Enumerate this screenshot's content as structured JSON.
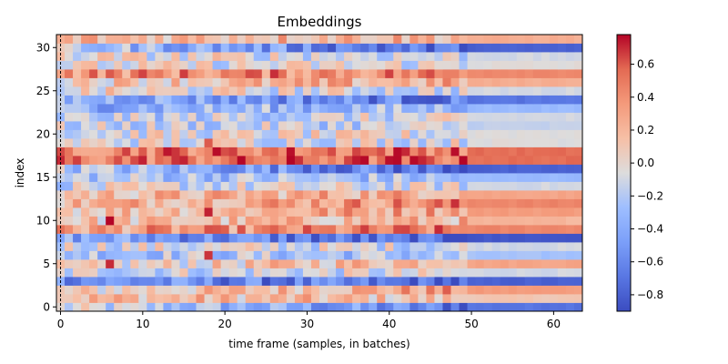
{
  "chart_data": {
    "type": "heatmap",
    "title": "Embeddings",
    "xlabel": "time frame (samples, in batches)",
    "ylabel": "index",
    "x_range": [
      -0.5,
      63.5
    ],
    "y_range": [
      -0.5,
      31.5
    ],
    "x_ticks": [
      0,
      10,
      20,
      30,
      40,
      50,
      60
    ],
    "y_ticks": [
      0,
      5,
      10,
      15,
      20,
      25,
      30
    ],
    "colormap": "coolwarm",
    "value_range": [
      -0.9,
      0.78
    ],
    "colorbar_ticks": [
      -0.8,
      -0.6,
      -0.4,
      -0.2,
      0.0,
      0.2,
      0.4,
      0.6
    ],
    "colorbar_tick_labels": [
      "−0.8",
      "−0.6",
      "−0.4",
      "−0.2",
      "0.0",
      "0.2",
      "0.4",
      "0.6"
    ],
    "vertical_marker_x": 0,
    "rows": 32,
    "cols": 64,
    "row_settled_values": [
      -0.7,
      0.1,
      0.35,
      -0.8,
      -0.1,
      0.3,
      -0.25,
      -0.1,
      -0.85,
      0.45,
      0.2,
      0.35,
      0.45,
      0.3,
      -0.1,
      -0.3,
      -0.8,
      0.55,
      0.55,
      -0.05,
      -0.05,
      -0.15,
      -0.1,
      -0.3,
      -0.7,
      -0.1,
      0.25,
      0.45,
      -0.05,
      -0.1,
      -0.8,
      0.25
    ],
    "row_early_values": [
      -0.1,
      0.2,
      0.0,
      -0.5,
      -0.1,
      -0.1,
      -0.2,
      -0.05,
      -0.4,
      0.3,
      0.1,
      0.15,
      0.2,
      0.15,
      -0.1,
      -0.2,
      -0.2,
      0.5,
      0.5,
      -0.05,
      -0.05,
      -0.15,
      -0.2,
      -0.35,
      -0.3,
      0.0,
      0.1,
      0.4,
      -0.05,
      0.0,
      -0.2,
      0.2
    ],
    "hot_cells": [
      {
        "x": 6,
        "y": 10,
        "value": 0.78
      },
      {
        "x": 18,
        "y": 11,
        "value": 0.72
      },
      {
        "x": 6,
        "y": 5,
        "value": 0.7
      },
      {
        "x": 18,
        "y": 6,
        "value": 0.68
      },
      {
        "x": 18,
        "y": 19,
        "value": 0.6
      },
      {
        "x": 35,
        "y": 17,
        "value": 0.65
      },
      {
        "x": 36,
        "y": 18,
        "value": 0.65
      }
    ]
  }
}
